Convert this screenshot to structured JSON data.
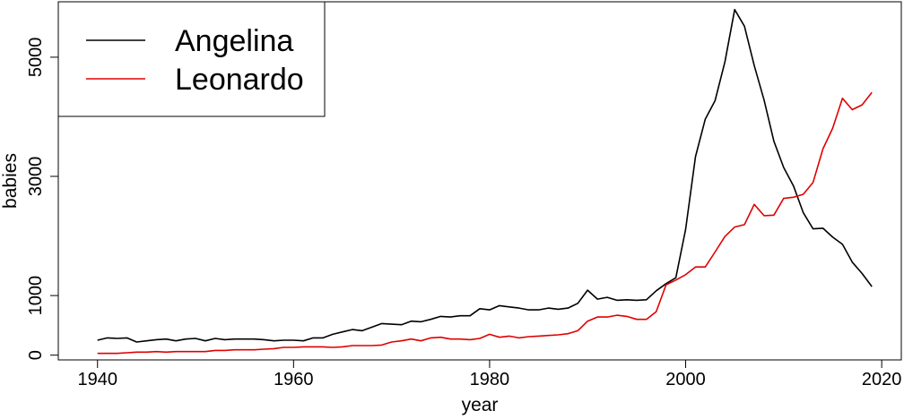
{
  "chart_data": {
    "type": "line",
    "xlabel": "year",
    "ylabel": "babies",
    "xlim": [
      1936,
      2022
    ],
    "ylim": [
      -80,
      5930
    ],
    "x_ticks": [
      1940,
      1960,
      1980,
      2000,
      2020
    ],
    "y_ticks": [
      0,
      1000,
      3000,
      5000
    ],
    "x_tick_labels": [
      "1940",
      "1960",
      "1980",
      "2000",
      "2020"
    ],
    "y_tick_labels": [
      "0",
      "1000",
      "3000",
      "5000"
    ],
    "grid": false,
    "legend_position": "top-left",
    "x": [
      1940,
      1941,
      1942,
      1943,
      1944,
      1945,
      1946,
      1947,
      1948,
      1949,
      1950,
      1951,
      1952,
      1953,
      1954,
      1955,
      1956,
      1957,
      1958,
      1959,
      1960,
      1961,
      1962,
      1963,
      1964,
      1965,
      1966,
      1967,
      1968,
      1969,
      1970,
      1971,
      1972,
      1973,
      1974,
      1975,
      1976,
      1977,
      1978,
      1979,
      1980,
      1981,
      1982,
      1983,
      1984,
      1985,
      1986,
      1987,
      1988,
      1989,
      1990,
      1991,
      1992,
      1993,
      1994,
      1995,
      1996,
      1997,
      1998,
      1999,
      2000,
      2001,
      2002,
      2003,
      2004,
      2005,
      2006,
      2007,
      2008,
      2009,
      2010,
      2011,
      2012,
      2013,
      2014,
      2015,
      2016,
      2017,
      2018,
      2019
    ],
    "series": [
      {
        "name": "Angelina",
        "color": "#000000",
        "values": [
          250,
          290,
          280,
          290,
          220,
          240,
          260,
          270,
          240,
          270,
          280,
          240,
          280,
          260,
          270,
          270,
          270,
          260,
          240,
          250,
          250,
          240,
          290,
          290,
          350,
          390,
          430,
          410,
          470,
          530,
          520,
          510,
          570,
          560,
          600,
          650,
          640,
          660,
          660,
          780,
          760,
          830,
          810,
          790,
          760,
          760,
          790,
          770,
          790,
          870,
          1090,
          940,
          970,
          920,
          930,
          920,
          930,
          1080,
          1200,
          1300,
          2110,
          3330,
          3960,
          4270,
          4920,
          5800,
          5520,
          4860,
          4280,
          3590,
          3150,
          2840,
          2390,
          2120,
          2130,
          1980,
          1860,
          1560,
          1370,
          1150
        ]
      },
      {
        "name": "Leonardo",
        "color": "#e00000",
        "values": [
          30,
          30,
          30,
          40,
          50,
          50,
          60,
          50,
          60,
          60,
          60,
          60,
          80,
          80,
          90,
          90,
          90,
          100,
          110,
          130,
          130,
          140,
          140,
          140,
          130,
          140,
          160,
          160,
          160,
          170,
          220,
          240,
          270,
          240,
          290,
          300,
          270,
          270,
          260,
          280,
          350,
          300,
          320,
          290,
          310,
          320,
          330,
          340,
          360,
          410,
          570,
          640,
          640,
          670,
          650,
          600,
          600,
          730,
          1180,
          1260,
          1350,
          1480,
          1480,
          1730,
          1990,
          2150,
          2190,
          2530,
          2340,
          2350,
          2630,
          2650,
          2700,
          2900,
          3460,
          3810,
          4310,
          4120,
          4200,
          4410
        ]
      }
    ]
  }
}
